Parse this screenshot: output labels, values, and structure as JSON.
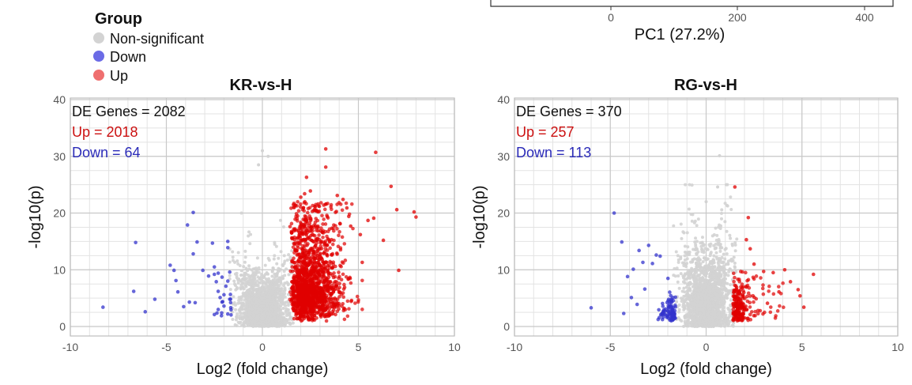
{
  "legend": {
    "title": "Group",
    "items": [
      {
        "label": "Non-significant",
        "color": "#d3d3d3"
      },
      {
        "label": "Down",
        "color": "#6b6be6"
      },
      {
        "label": "Up",
        "color": "#ef6f6f"
      }
    ]
  },
  "pca_fragment": {
    "xlabel": "PC1 (27.2%)",
    "ticks": [
      0,
      200,
      400
    ],
    "tick_labels": [
      "0",
      "200",
      "400"
    ]
  },
  "colors": {
    "nonsig": "#d3d3d3",
    "down": "#3333cc",
    "up": "#e00000",
    "down_text": "#2b2bb8",
    "up_text": "#cc1111",
    "grid": "#d0d0d0"
  },
  "chart_data": [
    {
      "type": "scatter",
      "title": "KR-vs-H",
      "xlabel": "Log2 (fold change)",
      "ylabel": "-log10(p)",
      "xlim": [
        -10,
        10
      ],
      "ylim": [
        0,
        40
      ],
      "xticks": [
        -10,
        -5,
        0,
        5,
        10
      ],
      "yticks": [
        0,
        10,
        20,
        30,
        40
      ],
      "grid": true,
      "annotations": {
        "total": "DE Genes = 2082",
        "up": "Up = 2018",
        "down": "Down = 64"
      },
      "series": [
        {
          "name": "Down",
          "points": [
            [
              -8.3,
              3.4
            ],
            [
              -6.6,
              14.8
            ],
            [
              -6.7,
              6.2
            ],
            [
              -6.1,
              2.6
            ],
            [
              -5.6,
              4.8
            ],
            [
              -4.8,
              10.8
            ],
            [
              -4.6,
              9.9
            ],
            [
              -4.5,
              8.1
            ],
            [
              -4.4,
              6.1
            ],
            [
              -4.1,
              3.5
            ],
            [
              -3.9,
              17.9
            ],
            [
              -3.8,
              4.3
            ],
            [
              -3.6,
              20.1
            ],
            [
              -3.5,
              4.2
            ],
            [
              -3.6,
              12.8
            ],
            [
              -3.4,
              14.9
            ],
            [
              -3.1,
              9.9
            ],
            [
              -2.8,
              8.9
            ],
            [
              -2.6,
              14.7
            ],
            [
              -2.5,
              10.5
            ],
            [
              -2.5,
              9.2
            ],
            [
              -2.3,
              9.4
            ],
            [
              -2.1,
              8.7
            ],
            [
              -2.3,
              6.2
            ],
            [
              -2.2,
              5.1
            ],
            [
              -2.5,
              2.1
            ],
            [
              -2.3,
              3.0
            ],
            [
              -2.1,
              4.3
            ],
            [
              -2.0,
              5.6
            ],
            [
              -1.9,
              7.1
            ],
            [
              -1.8,
              8.0
            ],
            [
              -1.8,
              15.0
            ],
            [
              -1.8,
              13.9
            ],
            [
              -1.7,
              9.6
            ],
            [
              -1.7,
              4.8
            ],
            [
              -1.8,
              2.2
            ],
            [
              -2.4,
              7.9
            ],
            [
              -2.0,
              3.6
            ]
          ]
        },
        {
          "name": "Up",
          "points": [
            [
              2.2,
              23.4
            ],
            [
              2.5,
              23.9
            ],
            [
              2.6,
              20.3
            ],
            [
              3.2,
              21.4
            ],
            [
              3.3,
              31.3
            ],
            [
              2.9,
              21.6
            ],
            [
              3.5,
              14.9
            ],
            [
              3.6,
              15.3
            ],
            [
              4.2,
              22.4
            ],
            [
              4.4,
              20.9
            ],
            [
              4.5,
              19.4
            ],
            [
              4.6,
              17.7
            ],
            [
              5.1,
              16.2
            ],
            [
              5.2,
              11.3
            ],
            [
              5.5,
              18.7
            ],
            [
              5.8,
              19.1
            ],
            [
              5.9,
              30.7
            ],
            [
              6.3,
              15.2
            ],
            [
              6.7,
              24.7
            ],
            [
              7.0,
              20.6
            ],
            [
              7.1,
              9.9
            ],
            [
              7.9,
              20.2
            ],
            [
              8.0,
              19.3
            ],
            [
              2.3,
              26.3
            ],
            [
              2.0,
              22.8
            ],
            [
              3.9,
              23.1
            ],
            [
              3.3,
              28.1
            ]
          ]
        },
        {
          "name": "Non-significant",
          "points": [
            [
              0.0,
              31.0
            ],
            [
              0.3,
              30.0
            ],
            [
              -0.2,
              28.5
            ]
          ]
        }
      ]
    },
    {
      "type": "scatter",
      "title": "RG-vs-H",
      "xlabel": "Log2 (fold change)",
      "ylabel": "-log10(p)",
      "xlim": [
        -10,
        10
      ],
      "ylim": [
        0,
        40
      ],
      "xticks": [
        -10,
        -5,
        0,
        5,
        10
      ],
      "yticks": [
        0,
        10,
        20,
        30,
        40
      ],
      "grid": true,
      "annotations": {
        "total": "DE Genes = 370",
        "up": "Up = 257",
        "down": "Down = 113"
      },
      "series": [
        {
          "name": "Down",
          "points": [
            [
              -6.0,
              3.3
            ],
            [
              -4.8,
              20.0
            ],
            [
              -4.4,
              14.9
            ],
            [
              -4.3,
              2.3
            ],
            [
              -4.1,
              8.8
            ],
            [
              -3.8,
              10.1
            ],
            [
              -3.5,
              13.4
            ],
            [
              -3.3,
              11.3
            ],
            [
              -3.0,
              14.3
            ],
            [
              -2.8,
              11.1
            ],
            [
              -2.6,
              12.6
            ],
            [
              -2.4,
              12.4
            ],
            [
              -3.2,
              6.6
            ],
            [
              -3.6,
              3.9
            ],
            [
              -3.9,
              5.1
            ]
          ]
        },
        {
          "name": "Up",
          "points": [
            [
              1.5,
              24.6
            ],
            [
              2.2,
              19.2
            ],
            [
              2.1,
              15.3
            ],
            [
              2.3,
              13.7
            ],
            [
              2.5,
              11.0
            ],
            [
              3.0,
              9.7
            ],
            [
              3.5,
              9.5
            ],
            [
              4.1,
              10.0
            ],
            [
              4.4,
              7.9
            ],
            [
              4.8,
              6.5
            ],
            [
              4.9,
              5.4
            ],
            [
              5.1,
              3.4
            ],
            [
              5.6,
              9.2
            ],
            [
              3.8,
              6.1
            ],
            [
              3.2,
              4.1
            ]
          ]
        },
        {
          "name": "Non-significant",
          "points": [
            [
              0.7,
              30.1
            ],
            [
              0.6,
              24.6
            ],
            [
              0.0,
              22.0
            ]
          ]
        }
      ]
    }
  ]
}
